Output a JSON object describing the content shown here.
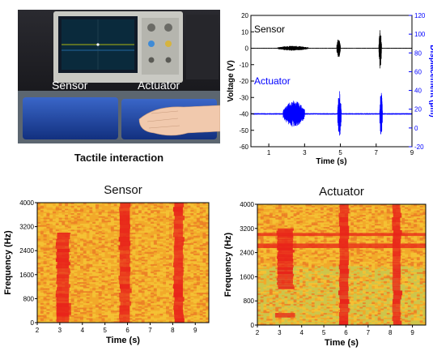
{
  "photo": {
    "label_sensor": "Sensor",
    "label_actuator": "Actuator",
    "caption": "Tactile interaction"
  },
  "panels": {
    "sensor_title": "Sensor",
    "actuator_title": "Actuator"
  },
  "colors": {
    "sensor_trace": "#000000",
    "actuator_trace": "#0000ff",
    "spectrogram_background": "#f2a92a",
    "spectrogram_band": "#e8231a"
  },
  "chart_data": [
    {
      "type": "line",
      "title": "",
      "xlabel": "Time (s)",
      "ylabel": "Voltage (V)",
      "y2label": "Displacement (μm)",
      "xlim": [
        0,
        9
      ],
      "ylim": [
        -60,
        20
      ],
      "y2lim": [
        -20,
        120
      ],
      "xticks": [
        1,
        3,
        5,
        7,
        9
      ],
      "yticks": [
        -60,
        -50,
        -40,
        -30,
        -20,
        -10,
        0,
        10,
        20
      ],
      "y2ticks": [
        -20,
        0,
        20,
        40,
        60,
        80,
        100,
        120
      ],
      "annotations": [
        "Sensor",
        "Actuator"
      ],
      "series": [
        {
          "axis": "left",
          "baseline": 0,
          "bursts": [
            {
              "start": 1.5,
              "end": 3.2,
              "amplitude": 1.5
            },
            {
              "start": 4.8,
              "end": 5.0,
              "amplitude": 6
            },
            {
              "start": 7.15,
              "end": 7.3,
              "amplitude": 13
            }
          ]
        },
        {
          "axis": "left",
          "baseline": -40,
          "bursts": [
            {
              "start": 1.8,
              "end": 3.0,
              "amplitude": 8
            },
            {
              "start": 4.85,
              "end": 5.05,
              "amplitude": 14
            },
            {
              "start": 7.2,
              "end": 7.35,
              "amplitude": 14
            }
          ]
        }
      ]
    },
    {
      "type": "heatmap",
      "title": "Sensor",
      "xlabel": "Time (s)",
      "ylabel": "Frequency (Hz)",
      "xlim": [
        2,
        9.6
      ],
      "ylim": [
        0,
        4000
      ],
      "xticks": [
        2,
        3,
        4,
        5,
        6,
        7,
        8,
        9
      ],
      "yticks": [
        0,
        800,
        1600,
        2400,
        3200,
        4000
      ],
      "hot_time_bands": [
        {
          "start": 2.85,
          "end": 3.4,
          "fmin": 0,
          "fmax": 3000
        },
        {
          "start": 5.65,
          "end": 6.1,
          "fmin": 0,
          "fmax": 4000
        },
        {
          "start": 8.05,
          "end": 8.45,
          "fmin": 0,
          "fmax": 4000
        }
      ],
      "hot_frequency_bands": [
        {
          "fmin": 250,
          "fmax": 650,
          "tmin": 2.85,
          "tmax": 3.5
        }
      ]
    },
    {
      "type": "heatmap",
      "title": "Actuator",
      "xlabel": "Time (s)",
      "ylabel": "Frequency (Hz)",
      "xlim": [
        2,
        9.6
      ],
      "ylim": [
        0,
        4000
      ],
      "xticks": [
        2,
        3,
        4,
        5,
        6,
        7,
        8,
        9
      ],
      "yticks": [
        0,
        800,
        1600,
        2400,
        3200,
        4000
      ],
      "hot_time_bands": [
        {
          "start": 2.9,
          "end": 3.6,
          "fmin": 1200,
          "fmax": 3200
        },
        {
          "start": 5.7,
          "end": 6.1,
          "fmin": 0,
          "fmax": 4000
        },
        {
          "start": 8.1,
          "end": 8.45,
          "fmin": 0,
          "fmax": 4000
        }
      ],
      "hot_frequency_bands": [
        {
          "fmin": 2950,
          "fmax": 3050,
          "tmin": 2,
          "tmax": 9.6
        },
        {
          "fmin": 2550,
          "fmax": 2700,
          "tmin": 2,
          "tmax": 9.6
        },
        {
          "fmin": 250,
          "fmax": 400,
          "tmin": 2.8,
          "tmax": 3.7
        }
      ]
    }
  ]
}
